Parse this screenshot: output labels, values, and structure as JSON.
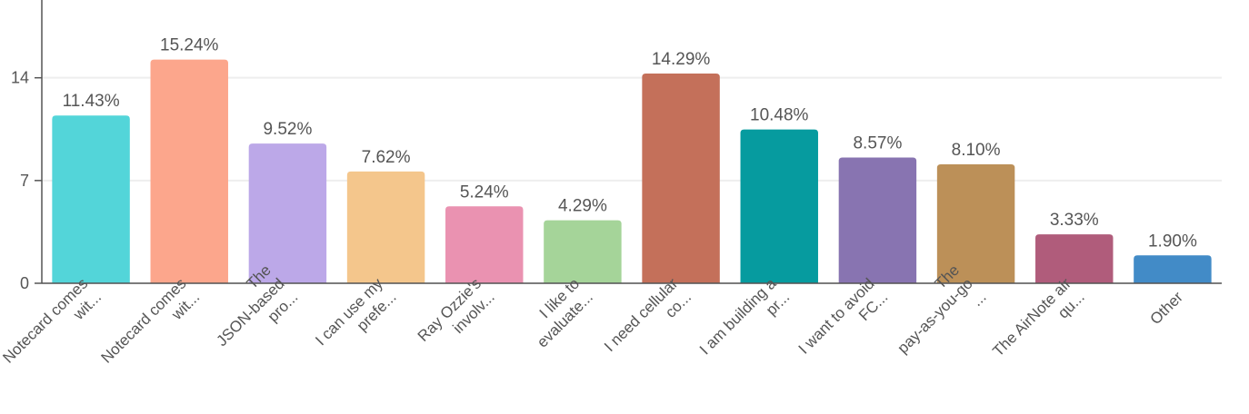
{
  "chart_data": {
    "type": "bar",
    "categories": [
      [
        "Notecard comes",
        "wit..."
      ],
      [
        "Notecard comes",
        "wit..."
      ],
      [
        "The",
        "JSON-based",
        "pro..."
      ],
      [
        "I can use my",
        "prefe..."
      ],
      [
        "Ray Ozzie's",
        "involv..."
      ],
      [
        "I like to",
        "evaluate..."
      ],
      [
        "I need cellular",
        "co..."
      ],
      [
        "I am building a",
        "pr..."
      ],
      [
        "I want to avoid",
        "FC..."
      ],
      [
        "The",
        "pay-as-you-go",
        "..."
      ],
      [
        "The AirNote air",
        "qu..."
      ],
      [
        "Other"
      ]
    ],
    "values": [
      11.43,
      15.24,
      9.52,
      7.62,
      5.24,
      4.29,
      14.29,
      10.48,
      8.57,
      8.1,
      3.33,
      1.9
    ],
    "value_labels": [
      "11.43%",
      "15.24%",
      "9.52%",
      "7.62%",
      "5.24%",
      "4.29%",
      "14.29%",
      "10.48%",
      "8.57%",
      "8.10%",
      "3.33%",
      "1.90%"
    ],
    "colors": [
      "#53d5d9",
      "#fca68c",
      "#bca8e8",
      "#f4c68c",
      "#ea92b1",
      "#a5d499",
      "#c4705a",
      "#069b9f",
      "#8874b1",
      "#bc9058",
      "#b05c7b",
      "#428bc7"
    ],
    "ylim": [
      0,
      19.3
    ],
    "yticks": [
      0,
      7,
      14
    ],
    "grid": true
  }
}
